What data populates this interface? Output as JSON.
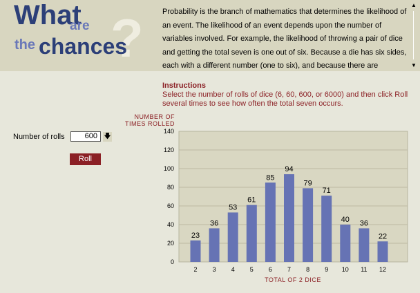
{
  "logo": {
    "what": "What",
    "are": "are",
    "the": "the",
    "chances": "chances",
    "question_mark": "?"
  },
  "intro_text": "Probability is the branch of mathematics that determines the likelihood of an event. The likelihood of an event depends upon the number of variables involved. For example, the likelihood of throwing a pair of dice and getting the total seven is one out of six. Because a die has six sides, each with a different number (one to six), and because there are",
  "scrollbar": {
    "up_icon": "triangle-up",
    "down_icon": "triangle-down"
  },
  "instructions": {
    "title": "Instructions",
    "text": "Select the number of rolls of dice (6, 60, 600, or 6000) and then click Roll several times to see how often the total seven occurs."
  },
  "controls": {
    "rolls_label": "Number of rolls",
    "rolls_value": "600",
    "dropdown_icon": "arrow-down",
    "roll_button": "Roll"
  },
  "colors": {
    "bar": "#6673b4",
    "accent": "#8b2025",
    "plot_bg": "#d9d7c2"
  },
  "chart_data": {
    "type": "bar",
    "ylabel_line1": "NUMBER OF",
    "ylabel_line2": "TIMES ROLLED",
    "xlabel": "TOTAL OF 2 DICE",
    "categories": [
      "2",
      "3",
      "4",
      "5",
      "6",
      "7",
      "8",
      "9",
      "10",
      "11",
      "12"
    ],
    "values": [
      23,
      36,
      53,
      61,
      85,
      94,
      79,
      71,
      40,
      36,
      22
    ],
    "yticks": [
      0,
      20,
      40,
      60,
      80,
      100,
      120,
      140
    ],
    "ylim": [
      0,
      140
    ],
    "grid": true
  }
}
